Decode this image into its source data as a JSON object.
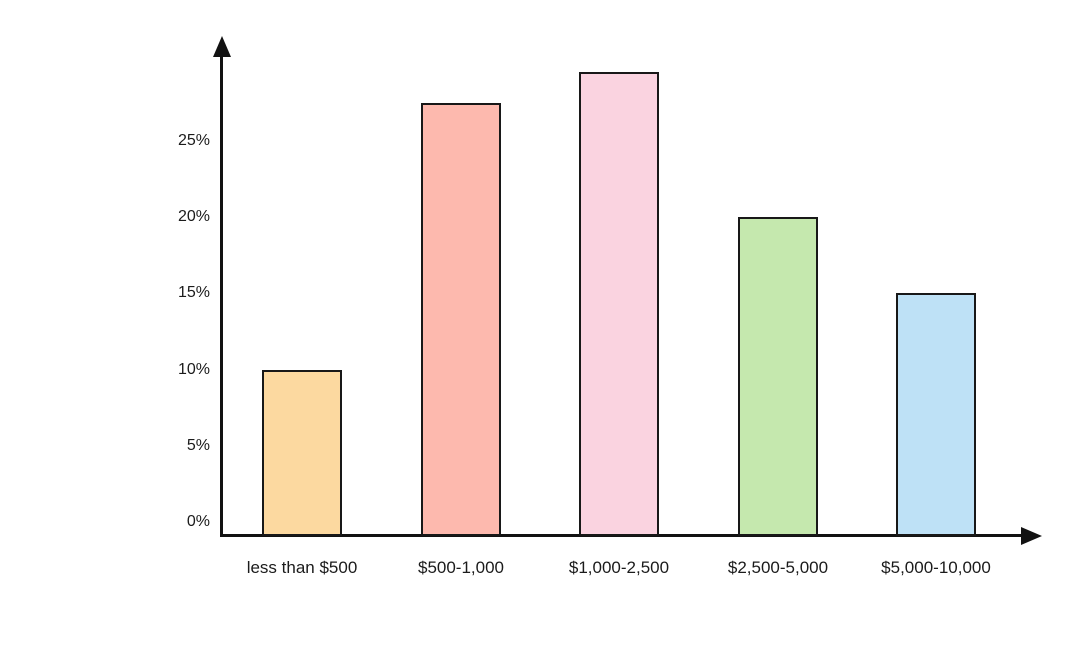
{
  "chart_data": {
    "type": "bar",
    "categories": [
      "less than $500",
      "$500-1,000",
      "$1,000-2,500",
      "$2,500-5,000",
      "$5,000-10,000"
    ],
    "values": [
      10,
      27.5,
      29.5,
      20,
      15
    ],
    "bar_colors": [
      "#FCD9A0",
      "#FDB9AE",
      "#FAD3E0",
      "#C5E8AE",
      "#BEE1F6"
    ],
    "bar_border_color": "#181818",
    "axis_color": "#121212",
    "text_color": "#1b1b1b",
    "background_color": "#ffffff",
    "title": "",
    "xlabel": "",
    "ylabel": "",
    "y_ticks": [
      {
        "value": 0,
        "label": "0%"
      },
      {
        "value": 5,
        "label": "5%"
      },
      {
        "value": 10,
        "label": "10%"
      },
      {
        "value": 15,
        "label": "15%"
      },
      {
        "value": 20,
        "label": "20%"
      },
      {
        "value": 25,
        "label": "25%"
      }
    ],
    "ylim": [
      0,
      32
    ],
    "grid": false,
    "legend": false
  }
}
